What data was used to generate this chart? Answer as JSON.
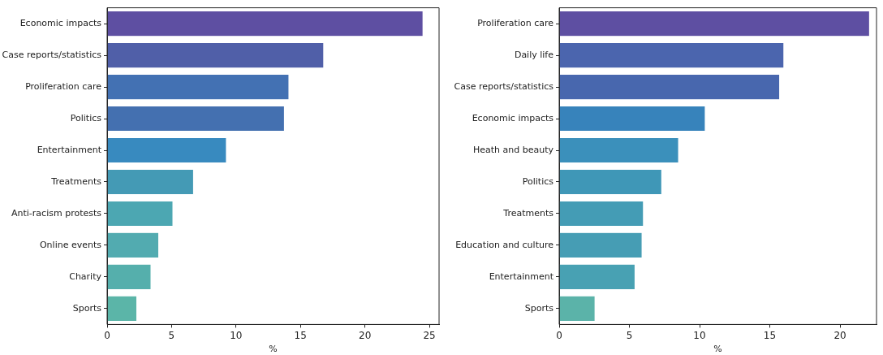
{
  "chart_data": [
    {
      "type": "bar",
      "orientation": "horizontal",
      "xlabel": "%",
      "categories": [
        "Economic impacts",
        "Case reports/statistics",
        "Proliferation care",
        "Politics",
        "Entertainment",
        "Treatments",
        "Anti-racism protests",
        "Online events",
        "Charity",
        "Sports"
      ],
      "values": [
        24.5,
        16.8,
        14.1,
        13.75,
        9.25,
        6.7,
        5.1,
        4.0,
        3.4,
        2.3
      ],
      "colors": [
        "#5e4fa2",
        "#505fa8",
        "#4371b3",
        "#4470b0",
        "#388abf",
        "#449ab5",
        "#4ca7b2",
        "#52abb0",
        "#55afac",
        "#5bb5a8"
      ],
      "xlim": [
        0,
        25.75
      ],
      "xticks": [
        0,
        5,
        10,
        15,
        20,
        25
      ]
    },
    {
      "type": "bar",
      "orientation": "horizontal",
      "xlabel": "%",
      "categories": [
        "Proliferation care",
        "Daily life",
        "Case reports/statistics",
        "Economic impacts",
        "Heath and beauty",
        "Politics",
        "Treatments",
        "Education and culture",
        "Entertainment",
        "Sports"
      ],
      "values": [
        22.1,
        16.0,
        15.7,
        10.4,
        8.5,
        7.3,
        6.0,
        5.9,
        5.4,
        2.55
      ],
      "colors": [
        "#5e4fa2",
        "#4b65ae",
        "#4867ae",
        "#3783bb",
        "#3b90bb",
        "#3f97b7",
        "#449cb5",
        "#469db4",
        "#48a1b3",
        "#5bb3a9"
      ],
      "xlim": [
        0,
        22.6
      ],
      "xticks": [
        0,
        5,
        10,
        15,
        20
      ]
    }
  ]
}
